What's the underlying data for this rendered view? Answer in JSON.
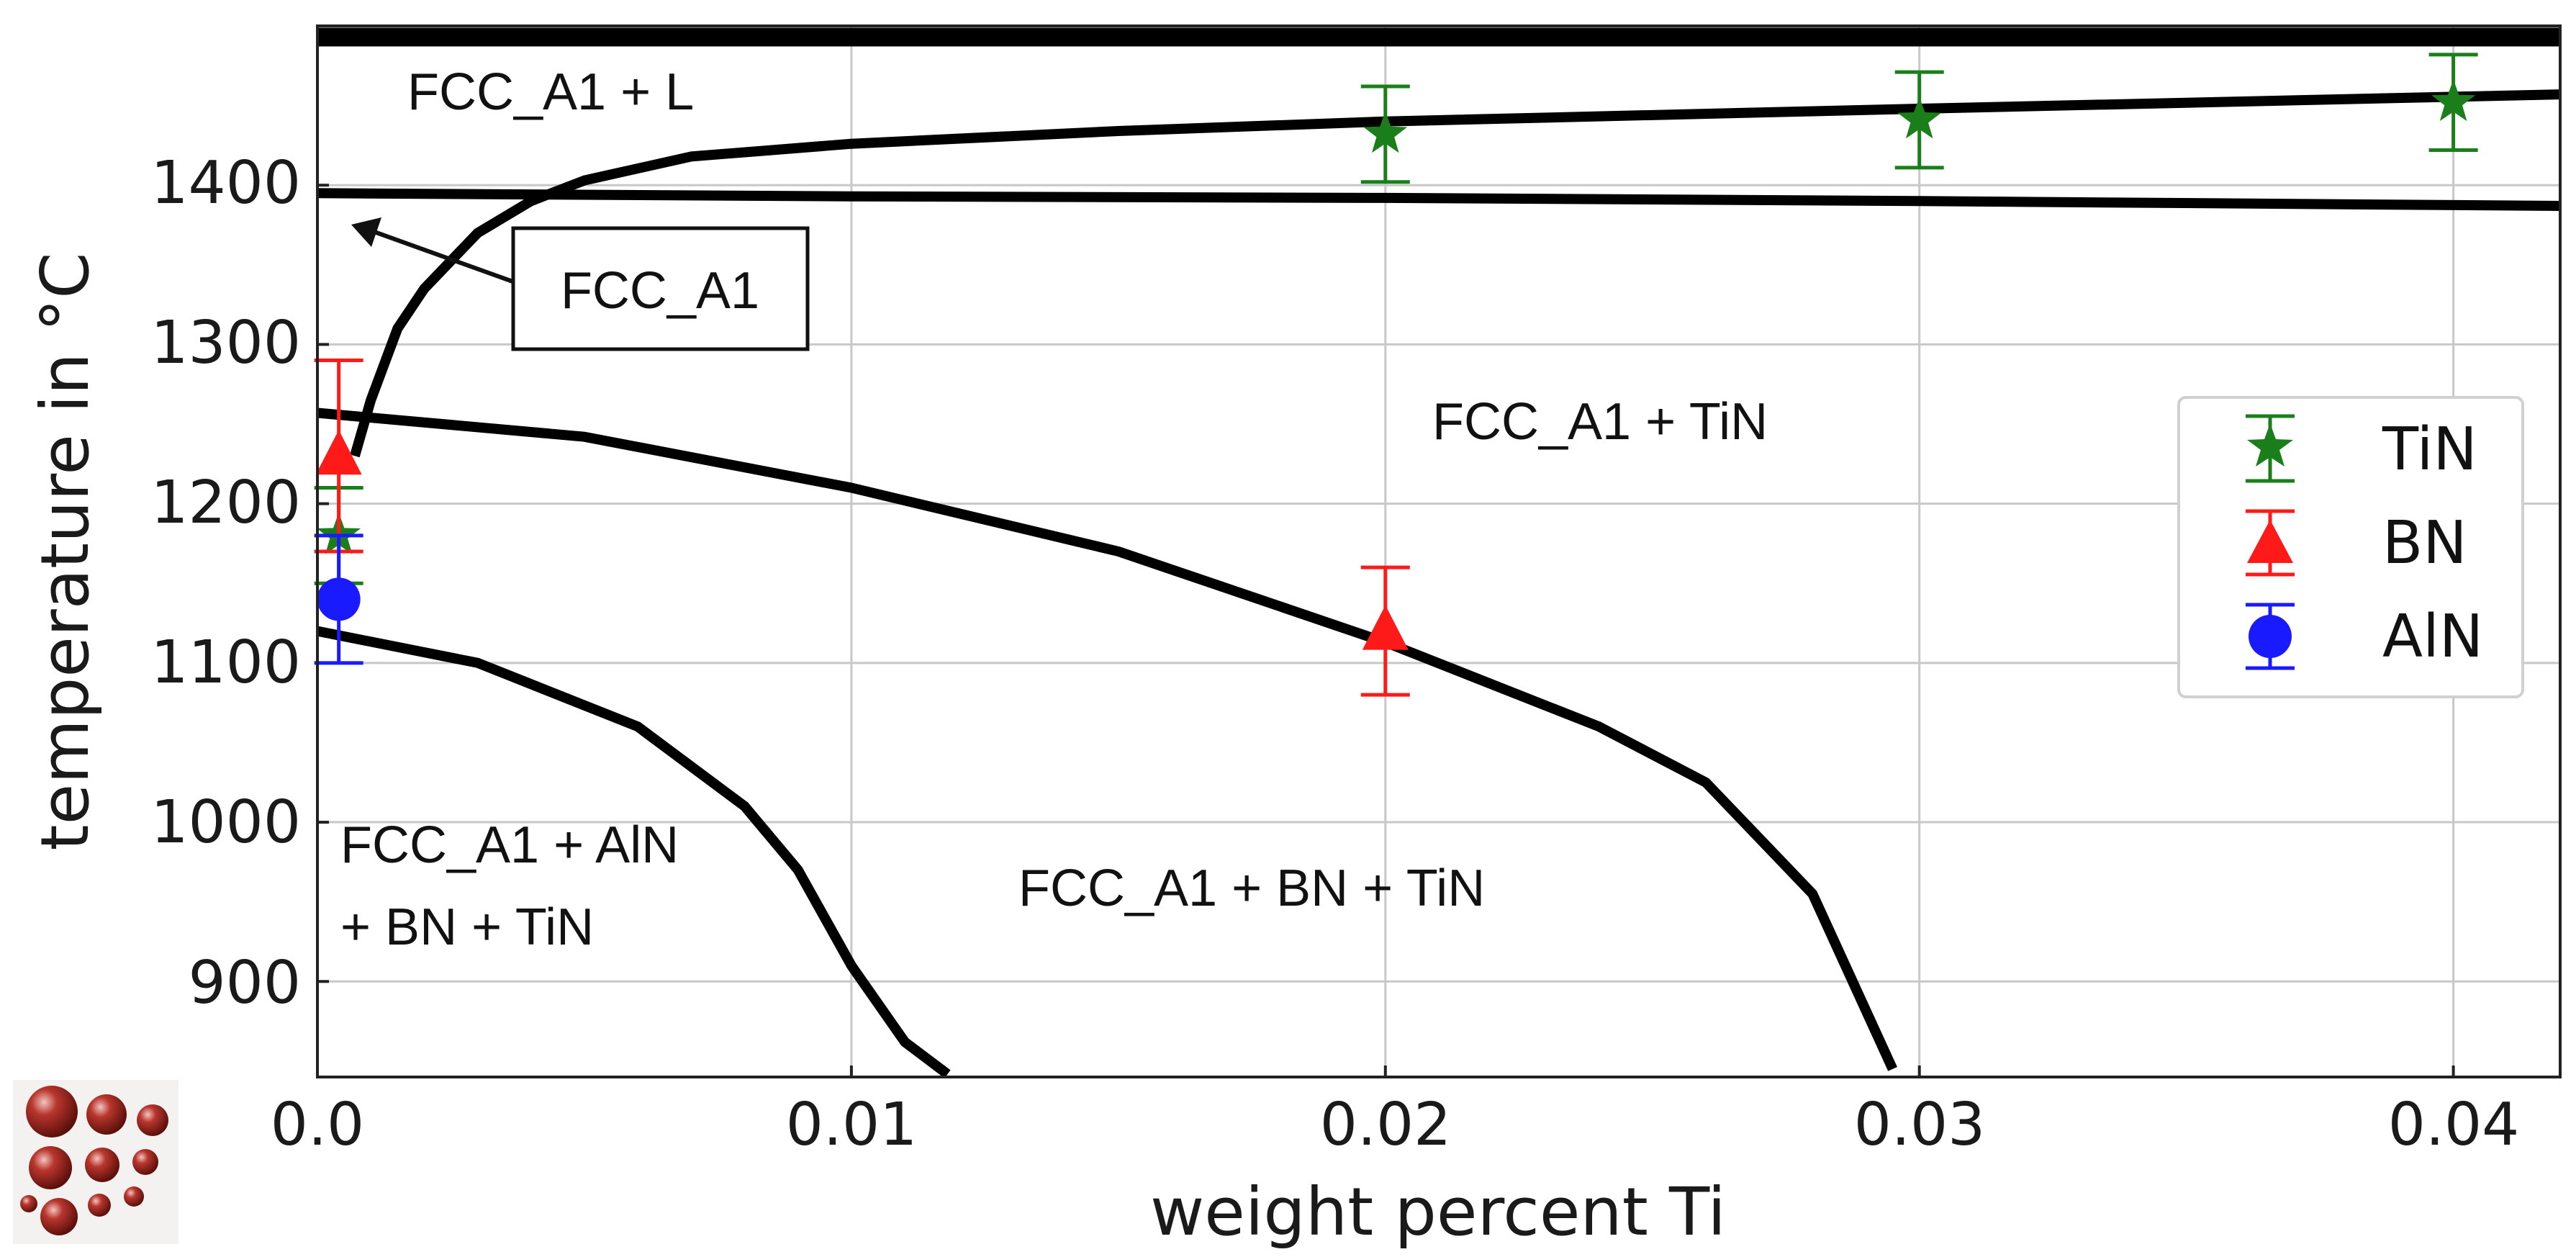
{
  "chart_data": {
    "type": "scatter",
    "title": "",
    "xlabel": "weight percent Ti",
    "ylabel": "temperature in °C",
    "xlim": [
      0.0,
      0.042
    ],
    "ylim": [
      840,
      1500
    ],
    "grid": true,
    "x_ticks": [
      {
        "value": 0.0,
        "label": "0.0"
      },
      {
        "value": 0.01,
        "label": "0.01"
      },
      {
        "value": 0.02,
        "label": "0.02"
      },
      {
        "value": 0.03,
        "label": "0.03"
      },
      {
        "value": 0.04,
        "label": "0.04"
      }
    ],
    "y_ticks": [
      {
        "value": 900,
        "label": "900"
      },
      {
        "value": 1000,
        "label": "1000"
      },
      {
        "value": 1100,
        "label": "1100"
      },
      {
        "value": 1200,
        "label": "1200"
      },
      {
        "value": 1300,
        "label": "1300"
      },
      {
        "value": 1400,
        "label": "1400"
      }
    ],
    "phase_boundaries": [
      {
        "name": "liquidus-line",
        "points": [
          [
            0.0,
            1493
          ],
          [
            0.042,
            1493
          ]
        ]
      },
      {
        "name": "fcc-solidus-line",
        "points": [
          [
            0.0,
            1395
          ],
          [
            0.01,
            1393
          ],
          [
            0.02,
            1392
          ],
          [
            0.03,
            1390
          ],
          [
            0.042,
            1387
          ]
        ]
      },
      {
        "name": "tin-solvus-line",
        "points": [
          [
            0.0007,
            1230
          ],
          [
            0.001,
            1265
          ],
          [
            0.0015,
            1310
          ],
          [
            0.002,
            1335
          ],
          [
            0.003,
            1370
          ],
          [
            0.004,
            1390
          ],
          [
            0.005,
            1403
          ],
          [
            0.007,
            1418
          ],
          [
            0.01,
            1426
          ],
          [
            0.015,
            1434
          ],
          [
            0.02,
            1440
          ],
          [
            0.03,
            1448
          ],
          [
            0.042,
            1457
          ]
        ]
      },
      {
        "name": "bn-solvus-line",
        "points": [
          [
            0.0,
            1257
          ],
          [
            0.005,
            1242
          ],
          [
            0.01,
            1210
          ],
          [
            0.015,
            1170
          ],
          [
            0.02,
            1113
          ],
          [
            0.024,
            1060
          ],
          [
            0.026,
            1025
          ],
          [
            0.028,
            955
          ],
          [
            0.0295,
            845
          ]
        ]
      },
      {
        "name": "aln-solvus-line",
        "points": [
          [
            0.0,
            1120
          ],
          [
            0.003,
            1100
          ],
          [
            0.006,
            1060
          ],
          [
            0.008,
            1010
          ],
          [
            0.009,
            970
          ],
          [
            0.01,
            910
          ],
          [
            0.011,
            862
          ],
          [
            0.0118,
            840
          ]
        ]
      }
    ],
    "series": [
      {
        "name": "TiN",
        "marker": "star",
        "color": "#1a7f1a",
        "points": [
          {
            "x": 0.0004,
            "y": 1180,
            "yerr": 30
          },
          {
            "x": 0.02,
            "y": 1432,
            "yerr": 30
          },
          {
            "x": 0.03,
            "y": 1441,
            "yerr": 30
          },
          {
            "x": 0.04,
            "y": 1452,
            "yerr": 30
          }
        ]
      },
      {
        "name": "BN",
        "marker": "triangle",
        "color": "#ff1a1a",
        "points": [
          {
            "x": 0.0004,
            "y": 1230,
            "yerr": 60
          },
          {
            "x": 0.02,
            "y": 1120,
            "yerr": 40
          }
        ]
      },
      {
        "name": "AlN",
        "marker": "circle",
        "color": "#1a1aff",
        "points": [
          {
            "x": 0.0004,
            "y": 1140,
            "yerr": 40
          }
        ]
      }
    ],
    "annotations": {
      "fcc_l": "FCC_A1 + L",
      "fcc_box": "FCC_A1",
      "fcc_tin": "FCC_A1 + TiN",
      "fcc_aln_line1": "FCC_A1 + AlN",
      "fcc_aln_line2": "+ BN + TiN",
      "fcc_bn_tin": "FCC_A1 + BN + TiN"
    },
    "legend": {
      "position": "center-right",
      "entries": [
        "TiN",
        "BN",
        "AlN"
      ]
    }
  }
}
